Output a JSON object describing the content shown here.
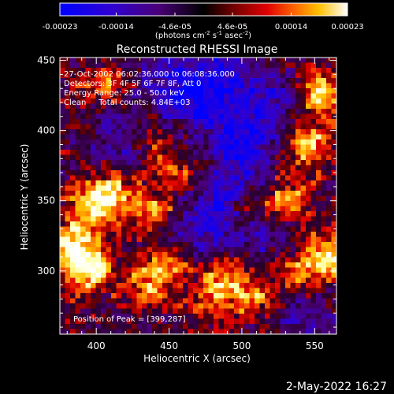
{
  "chart_data": {
    "type": "heatmap",
    "title": "Reconstructed RHESSI Image",
    "xlabel": "Heliocentric X (arcsec)",
    "ylabel": "Heliocentric Y (arcsec)",
    "xlim": [
      375,
      565
    ],
    "ylim": [
      255,
      452
    ],
    "x_ticks": [
      400,
      450,
      500,
      550
    ],
    "y_ticks": [
      300,
      350,
      400,
      450
    ],
    "colorbar": {
      "min": -0.00023,
      "max": 0.00023,
      "tick_labels": [
        "-0.00023",
        "-0.00014",
        "-4.6e-05",
        "4.6e-05",
        "0.00014",
        "0.00023"
      ],
      "tick_values": [
        -0.00023,
        -0.00014,
        -4.6e-05,
        4.6e-05,
        0.00014,
        0.00023
      ],
      "units_prefix": "(photons cm",
      "units_exp1": "-2",
      "units_mid": " s",
      "units_exp2": "-1",
      "units_mid2": " asec",
      "units_exp3": "-2",
      "units_suffix": ")",
      "colormap": [
        "#0000ff",
        "#3000d0",
        "#4a007a",
        "#000000",
        "#700000",
        "#e00000",
        "#ff6a00",
        "#ffc000",
        "#ffffa0",
        "#ffffff"
      ]
    },
    "annotations": {
      "time": "27-Oct-2002 06:02:36.000 to 06:08:36.000",
      "detectors": "Detectors: 3F 4F 5F 6F 7F 8F, Att 0",
      "energy": "Energy Range: 25.0 - 50.0 keV",
      "clean": "Clean     Total counts: 4.84E+03",
      "peak": "Position of Peak = [399,287]"
    },
    "bright_regions": [
      {
        "x": 395,
        "y": 300,
        "level": 1.0
      },
      {
        "x": 385,
        "y": 318,
        "level": 0.95
      },
      {
        "x": 410,
        "y": 355,
        "level": 0.85
      },
      {
        "x": 395,
        "y": 345,
        "level": 0.7
      },
      {
        "x": 440,
        "y": 343,
        "level": 0.6
      },
      {
        "x": 555,
        "y": 425,
        "level": 0.9
      },
      {
        "x": 545,
        "y": 390,
        "level": 0.8
      },
      {
        "x": 560,
        "y": 310,
        "level": 0.85
      },
      {
        "x": 530,
        "y": 350,
        "level": 0.7
      },
      {
        "x": 490,
        "y": 300,
        "level": 0.7
      },
      {
        "x": 510,
        "y": 280,
        "level": 0.55
      },
      {
        "x": 500,
        "y": 340,
        "level": 0.5
      },
      {
        "x": 435,
        "y": 290,
        "level": 0.6
      },
      {
        "x": 450,
        "y": 305,
        "level": 0.55
      },
      {
        "x": 455,
        "y": 370,
        "level": 0.45
      },
      {
        "x": 440,
        "y": 392,
        "level": 0.45
      },
      {
        "x": 405,
        "y": 430,
        "level": 0.55
      },
      {
        "x": 480,
        "y": 280,
        "level": 0.55
      },
      {
        "x": 535,
        "y": 300,
        "level": 0.55
      }
    ],
    "dark_regions": [
      {
        "x": 500,
        "y": 390,
        "level": -0.8
      },
      {
        "x": 470,
        "y": 420,
        "level": -0.7
      },
      {
        "x": 520,
        "y": 420,
        "level": -0.6
      },
      {
        "x": 490,
        "y": 350,
        "level": -0.6
      },
      {
        "x": 470,
        "y": 330,
        "level": -0.5
      },
      {
        "x": 420,
        "y": 395,
        "level": -0.55
      },
      {
        "x": 510,
        "y": 320,
        "level": -0.45
      },
      {
        "x": 450,
        "y": 440,
        "level": -0.5
      },
      {
        "x": 540,
        "y": 260,
        "level": -0.4
      },
      {
        "x": 490,
        "y": 440,
        "level": -0.6
      }
    ]
  },
  "footer": {
    "timestamp": "2-May-2022 16:27"
  }
}
